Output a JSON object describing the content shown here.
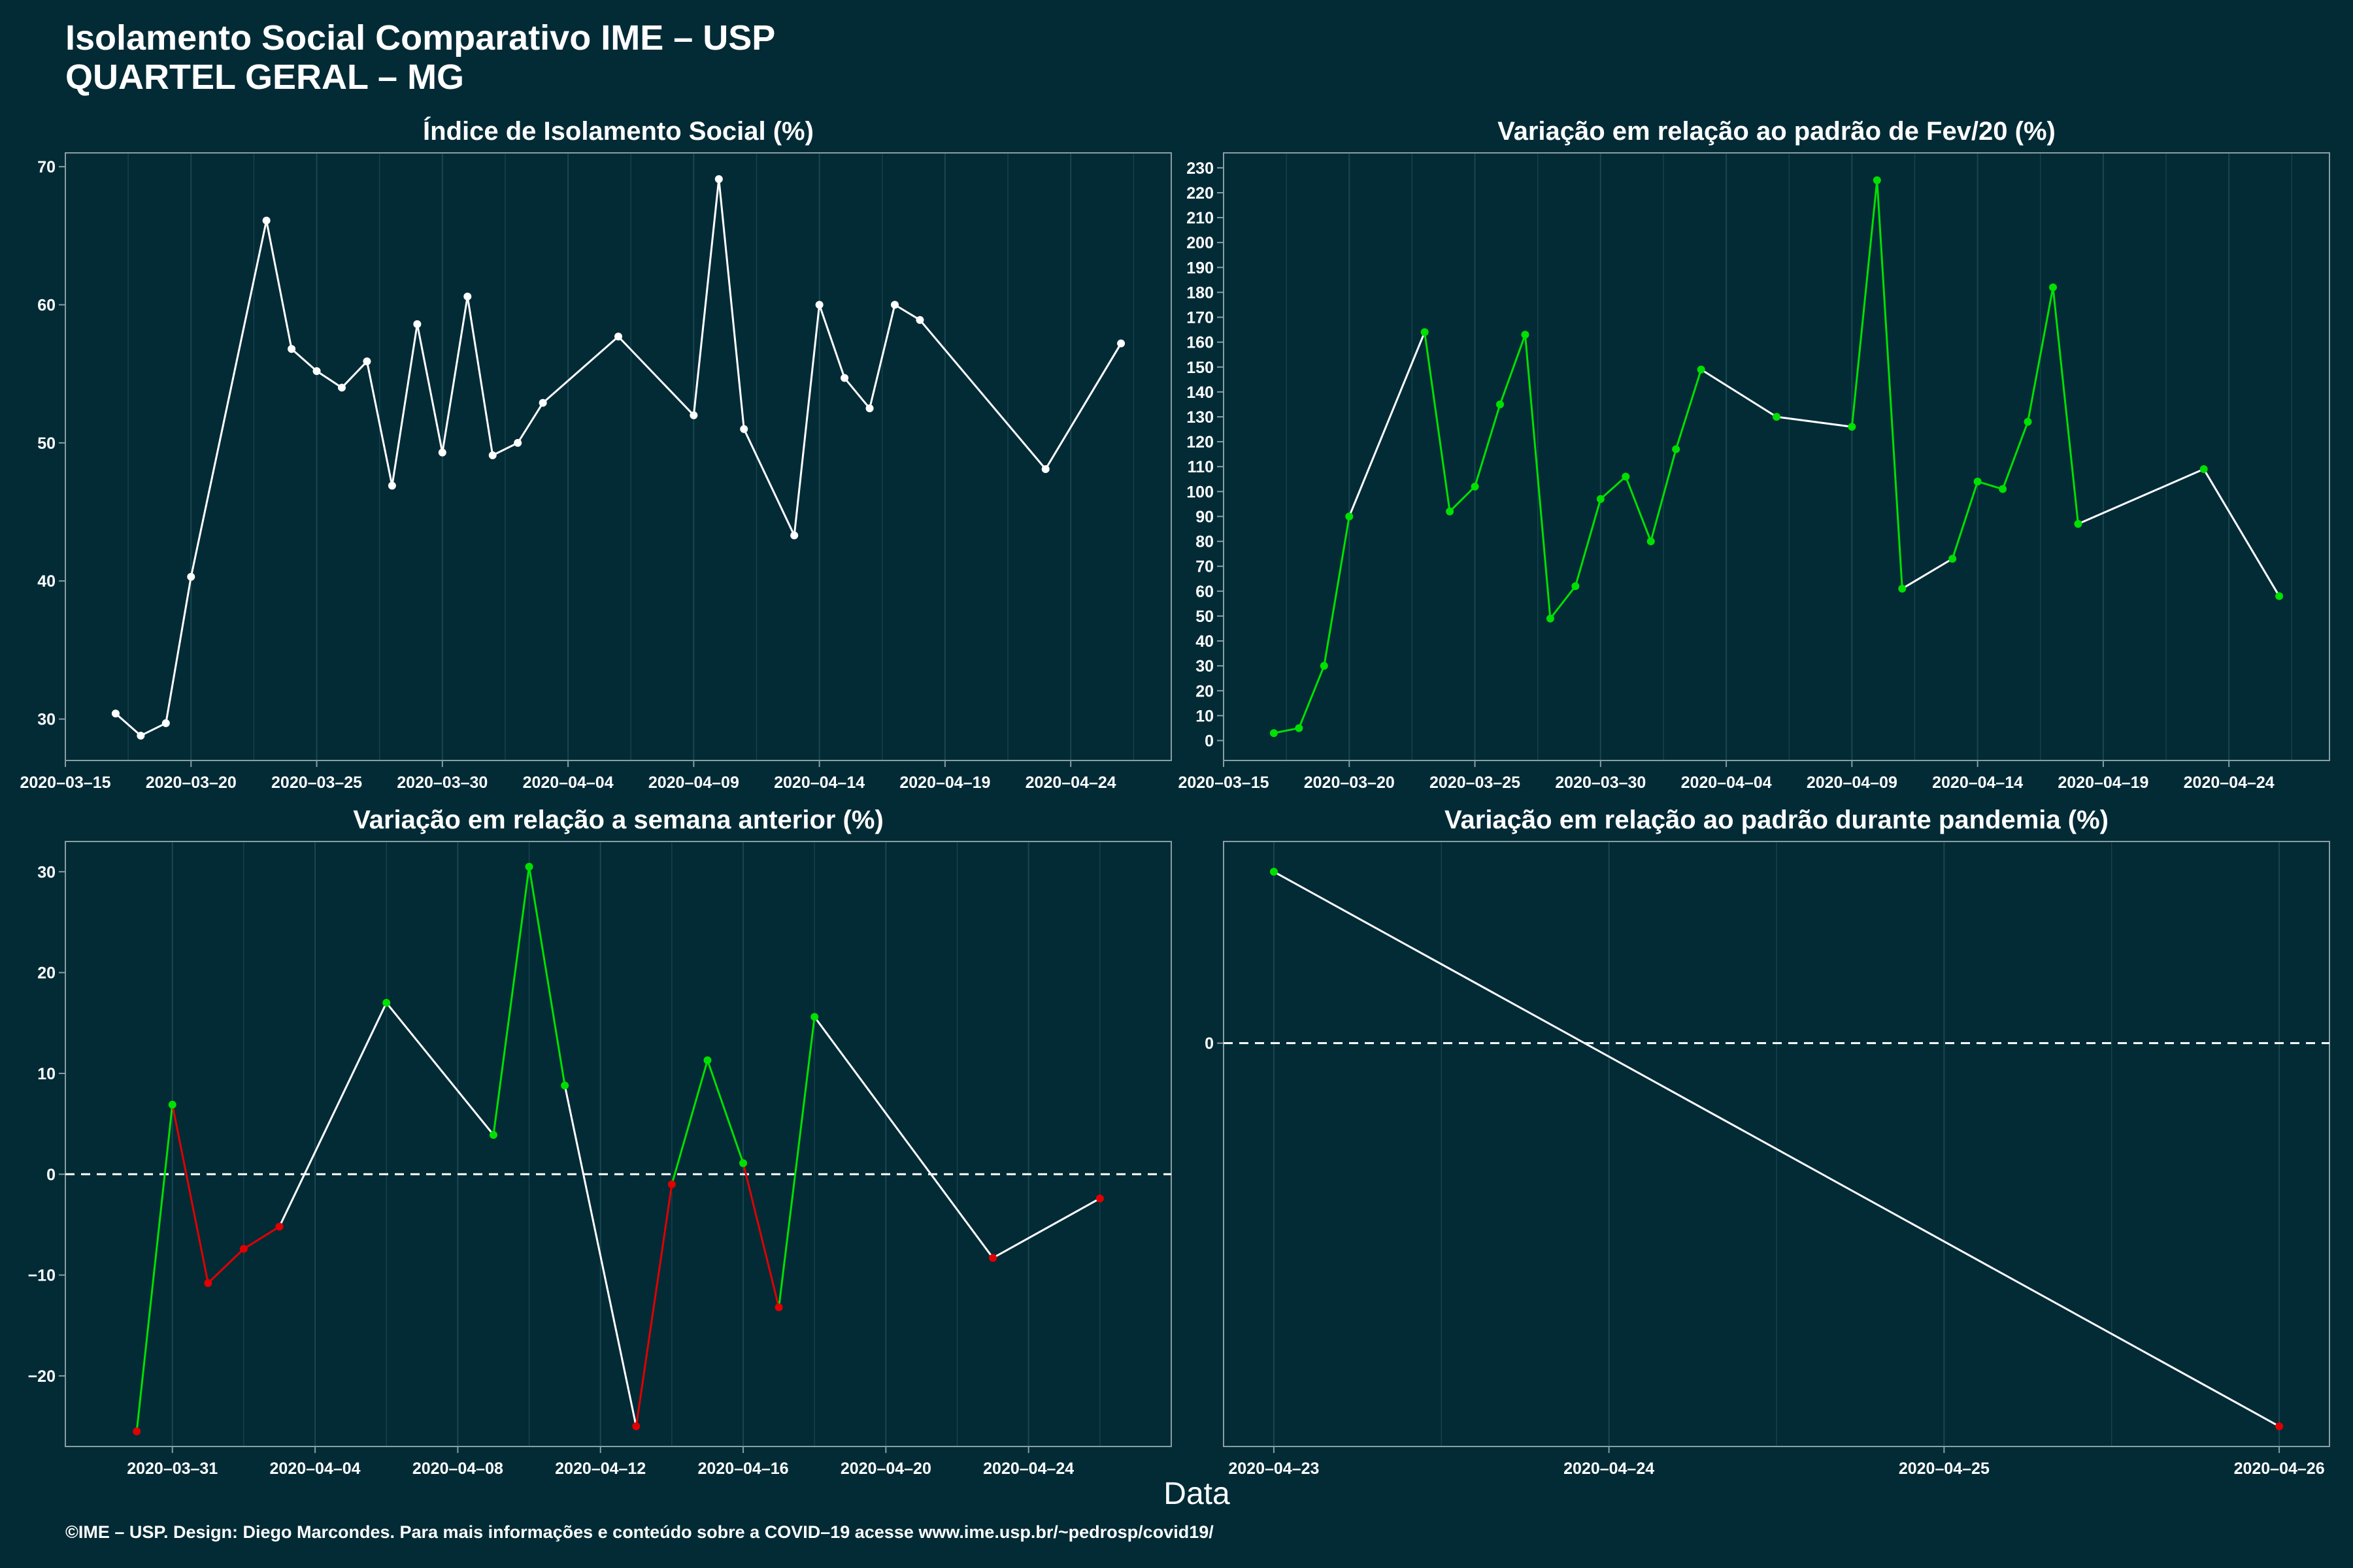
{
  "header": {
    "title_line1": "Isolamento Social Comparativo IME – USP",
    "title_line2": "QUARTEL GERAL – MG"
  },
  "x_axis_label": "Data",
  "footer": "©IME – USP. Design: Diego Marcondes. Para mais informações e conteúdo sobre a COVID–19 acesse www.ime.usp.br/~pedrosp/covid19/",
  "colors": {
    "background": "#022b36",
    "up": "#00e000",
    "down": "#e00000",
    "neutral": "#ffffff",
    "grid": "#1b4650"
  },
  "chart_data": [
    {
      "type": "line",
      "title": "Índice de Isolamento Social (%)",
      "ylim": [
        27,
        71
      ],
      "yticks": [
        30,
        40,
        50,
        60,
        70
      ],
      "xlim": [
        "2020-03-15",
        "2020-04-28"
      ],
      "xticks": [
        "2020-03-15",
        "2020-03-20",
        "2020-03-25",
        "2020-03-30",
        "2020-04-04",
        "2020-04-09",
        "2020-04-14",
        "2020-04-19",
        "2020-04-24"
      ],
      "color_mode": "white",
      "x": [
        "2020-03-17",
        "2020-03-18",
        "2020-03-19",
        "2020-03-20",
        "2020-03-23",
        "2020-03-24",
        "2020-03-25",
        "2020-03-26",
        "2020-03-27",
        "2020-03-28",
        "2020-03-29",
        "2020-03-30",
        "2020-03-31",
        "2020-04-01",
        "2020-04-02",
        "2020-04-03",
        "2020-04-06",
        "2020-04-09",
        "2020-04-10",
        "2020-04-11",
        "2020-04-13",
        "2020-04-14",
        "2020-04-15",
        "2020-04-16",
        "2020-04-17",
        "2020-04-18",
        "2020-04-23",
        "2020-04-26"
      ],
      "values": [
        30.4,
        28.8,
        29.7,
        40.3,
        66.1,
        56.8,
        55.2,
        54.0,
        55.9,
        46.9,
        58.6,
        49.3,
        60.6,
        49.1,
        50.0,
        52.9,
        57.7,
        52.0,
        69.1,
        51.0,
        43.3,
        60.0,
        54.7,
        52.5,
        60.0,
        58.9,
        48.1,
        57.2
      ]
    },
    {
      "type": "line",
      "title": "Variação em relação ao padrão de Fev/20 (%)",
      "ylim": [
        -8,
        236
      ],
      "yticks": [
        0,
        10,
        20,
        30,
        40,
        50,
        60,
        70,
        80,
        90,
        100,
        110,
        120,
        130,
        140,
        150,
        160,
        170,
        180,
        190,
        200,
        210,
        220,
        230
      ],
      "xlim": [
        "2020-03-15",
        "2020-04-28"
      ],
      "xticks": [
        "2020-03-15",
        "2020-03-20",
        "2020-03-25",
        "2020-03-30",
        "2020-04-04",
        "2020-04-09",
        "2020-04-14",
        "2020-04-19",
        "2020-04-24"
      ],
      "color_mode": "trend",
      "x": [
        "2020-03-17",
        "2020-03-18",
        "2020-03-19",
        "2020-03-20",
        "2020-03-23",
        "2020-03-24",
        "2020-03-25",
        "2020-03-26",
        "2020-03-27",
        "2020-03-28",
        "2020-03-29",
        "2020-03-30",
        "2020-03-31",
        "2020-04-01",
        "2020-04-02",
        "2020-04-03",
        "2020-04-06",
        "2020-04-09",
        "2020-04-10",
        "2020-04-11",
        "2020-04-13",
        "2020-04-14",
        "2020-04-15",
        "2020-04-16",
        "2020-04-17",
        "2020-04-18",
        "2020-04-23",
        "2020-04-26"
      ],
      "values": [
        3,
        5,
        30,
        90,
        164,
        92,
        102,
        135,
        163,
        49,
        62,
        97,
        106,
        80,
        117,
        149,
        130,
        126,
        225,
        61,
        73,
        104,
        101,
        128,
        182,
        87,
        109,
        58
      ]
    },
    {
      "type": "line",
      "title": "Variação em relação a semana anterior (%)",
      "ylim": [
        -27,
        33
      ],
      "yticks": [
        -20,
        -10,
        0,
        10,
        20,
        30
      ],
      "ytick_labels": [
        "−20",
        "−10",
        "0",
        "10",
        "20",
        "30"
      ],
      "zero_line": true,
      "xlim": [
        "2020-03-28",
        "2020-04-28"
      ],
      "xticks": [
        "2020-03-31",
        "2020-04-04",
        "2020-04-08",
        "2020-04-12",
        "2020-04-16",
        "2020-04-20",
        "2020-04-24"
      ],
      "color_mode": "sign",
      "x": [
        "2020-03-30",
        "2020-03-31",
        "2020-04-01",
        "2020-04-02",
        "2020-04-03",
        "2020-04-06",
        "2020-04-09",
        "2020-04-10",
        "2020-04-11",
        "2020-04-13",
        "2020-04-14",
        "2020-04-15",
        "2020-04-16",
        "2020-04-17",
        "2020-04-18",
        "2020-04-23",
        "2020-04-26"
      ],
      "values": [
        -25.5,
        6.9,
        -10.8,
        -7.4,
        -5.2,
        17.0,
        3.9,
        30.5,
        8.8,
        -25.0,
        -1.0,
        11.3,
        1.1,
        -13.2,
        15.6,
        -8.3,
        -2.4
      ]
    },
    {
      "type": "line",
      "title": "Variação em relação ao padrão durante pandemia (%)",
      "ylim": [
        -40,
        20
      ],
      "yticks": [
        0
      ],
      "zero_line": true,
      "xlim": [
        "2020-04-22.85",
        "2020-04-26.15"
      ],
      "xticks": [
        "2020-04-23",
        "2020-04-24",
        "2020-04-25",
        "2020-04-26"
      ],
      "color_mode": "sign",
      "x": [
        "2020-04-23",
        "2020-04-26"
      ],
      "values": [
        17.0,
        -38.0
      ]
    }
  ]
}
